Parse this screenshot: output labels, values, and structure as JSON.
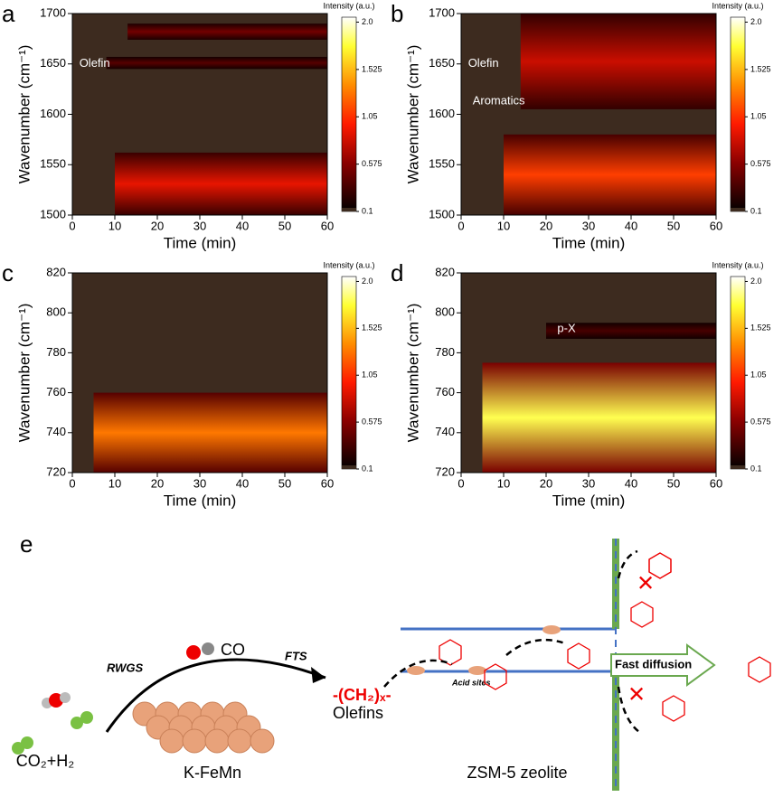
{
  "chart_data": [
    {
      "type": "contour",
      "panel": "a",
      "xlabel": "Time (min)",
      "ylabel": "Wavenumber (cm⁻¹)",
      "xlim": [
        0,
        60
      ],
      "xticks": [
        0,
        10,
        20,
        30,
        40,
        50,
        60
      ],
      "ylim": [
        1500,
        1700
      ],
      "yticks": [
        1500,
        1550,
        1600,
        1650,
        1700
      ],
      "colorbar": {
        "title": "Intensity (a.u.)",
        "lim": [
          0.1,
          2.05
        ],
        "ticks": [
          0.1,
          0.575,
          1.05,
          1.525,
          {
            "value": 2.0,
            "label": "2.0"
          }
        ]
      },
      "bands": [
        {
          "range": [
            1674,
            1690
          ],
          "onset": 13,
          "intensity": 0.5
        },
        {
          "range": [
            1645,
            1657
          ],
          "onset": 8,
          "intensity": 0.4
        },
        {
          "range": [
            1500,
            1562
          ],
          "onset": 10,
          "intensity": 0.9
        }
      ],
      "annotations": [
        "Olefin"
      ]
    },
    {
      "type": "contour",
      "panel": "b",
      "xlabel": "Time (min)",
      "ylabel": "Wavenumber (cm⁻¹)",
      "xlim": [
        0,
        60
      ],
      "xticks": [
        0,
        10,
        20,
        30,
        40,
        50,
        60
      ],
      "ylim": [
        1500,
        1700
      ],
      "yticks": [
        1500,
        1550,
        1600,
        1650,
        1700
      ],
      "colorbar": {
        "title": "Intensity (a.u.)",
        "lim": [
          0.1,
          2.05
        ],
        "ticks": [
          0.1,
          0.575,
          1.05,
          1.525,
          {
            "value": 2.0,
            "label": "2.0"
          }
        ]
      },
      "bands": [
        {
          "range": [
            1605,
            1700
          ],
          "onset": 14,
          "intensity": 0.8
        },
        {
          "range": [
            1500,
            1580
          ],
          "onset": 10,
          "intensity": 1.1
        }
      ],
      "annotations": [
        "Olefin",
        "Aromatics"
      ]
    },
    {
      "type": "contour",
      "panel": "c",
      "xlabel": "Time (min)",
      "ylabel": "Wavenumber (cm⁻¹)",
      "xlim": [
        0,
        60
      ],
      "xticks": [
        0,
        10,
        20,
        30,
        40,
        50,
        60
      ],
      "ylim": [
        720,
        820
      ],
      "yticks": [
        720,
        740,
        760,
        780,
        800,
        820
      ],
      "colorbar": {
        "title": "Intensity (a.u.)",
        "lim": [
          0.1,
          2.05
        ],
        "ticks": [
          0.1,
          0.575,
          1.05,
          1.525,
          {
            "value": 2.0,
            "label": "2.0"
          }
        ]
      },
      "bands": [
        {
          "range": [
            720,
            760
          ],
          "onset": 5,
          "intensity": 1.3
        }
      ],
      "annotations": []
    },
    {
      "type": "contour",
      "panel": "d",
      "xlabel": "Time (min)",
      "ylabel": "Wavenumber (cm⁻¹)",
      "xlim": [
        0,
        60
      ],
      "xticks": [
        0,
        10,
        20,
        30,
        40,
        50,
        60
      ],
      "ylim": [
        720,
        820
      ],
      "yticks": [
        720,
        740,
        760,
        780,
        800,
        820
      ],
      "colorbar": {
        "title": "Intensity (a.u.)",
        "lim": [
          0.1,
          2.05
        ],
        "ticks": [
          0.1,
          0.575,
          1.05,
          1.525,
          {
            "value": 2.0,
            "label": "2.0"
          }
        ]
      },
      "bands": [
        {
          "range": [
            720,
            775
          ],
          "onset": 5,
          "intensity": 1.8
        },
        {
          "range": [
            787,
            795
          ],
          "onset": 20,
          "intensity": 0.35
        }
      ],
      "annotations": [
        "p-X"
      ]
    }
  ],
  "diagram": {
    "panel": "e",
    "reactants": "CO₂+H₂",
    "step1": "RWGS",
    "intermediate": "CO",
    "step2": "FTS",
    "chain": "-(CH₂)ₓ-",
    "product": "Olefins",
    "catalyst": "K-FeMn",
    "sites": "Acid sites",
    "flow": "Fast diffusion",
    "zeolite": "ZSM-5 zeolite"
  }
}
